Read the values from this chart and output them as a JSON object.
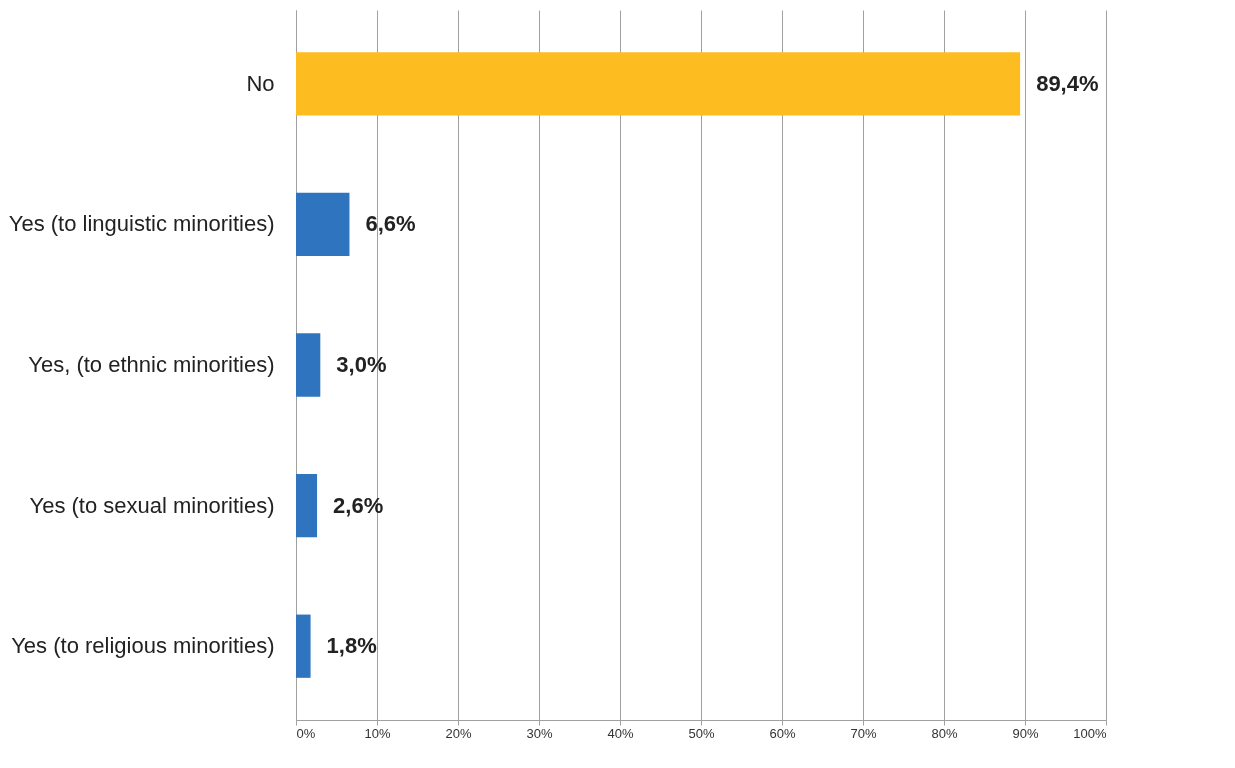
{
  "chart_data": {
    "type": "bar",
    "orientation": "horizontal",
    "categories": [
      "No",
      "Yes (to linguistic minorities)",
      "Yes, (to ethnic minorities)",
      "Yes (to sexual minorities)",
      "Yes (to religious minorities)"
    ],
    "values": [
      89.4,
      6.6,
      3.0,
      2.6,
      1.8
    ],
    "colors": [
      "#fdbd21",
      "#2e74bf",
      "#2e74bf",
      "#2e74bf",
      "#2e74bf"
    ],
    "value_labels": [
      "89,4%",
      "6,6%",
      "3,0%",
      "2,6%",
      "1,8%"
    ],
    "xlim": [
      0,
      100
    ],
    "xticks": [
      {
        "value": 0,
        "label": "0%"
      },
      {
        "value": 10,
        "label": "10%"
      },
      {
        "value": 20,
        "label": "20%"
      },
      {
        "value": 30,
        "label": "30%"
      },
      {
        "value": 40,
        "label": "40%"
      },
      {
        "value": 50,
        "label": "50%"
      },
      {
        "value": 60,
        "label": "60%"
      },
      {
        "value": 70,
        "label": "70%"
      },
      {
        "value": 80,
        "label": "80%"
      },
      {
        "value": 90,
        "label": "90%"
      },
      {
        "value": 100,
        "label": "100%"
      }
    ],
    "grid": "x"
  }
}
